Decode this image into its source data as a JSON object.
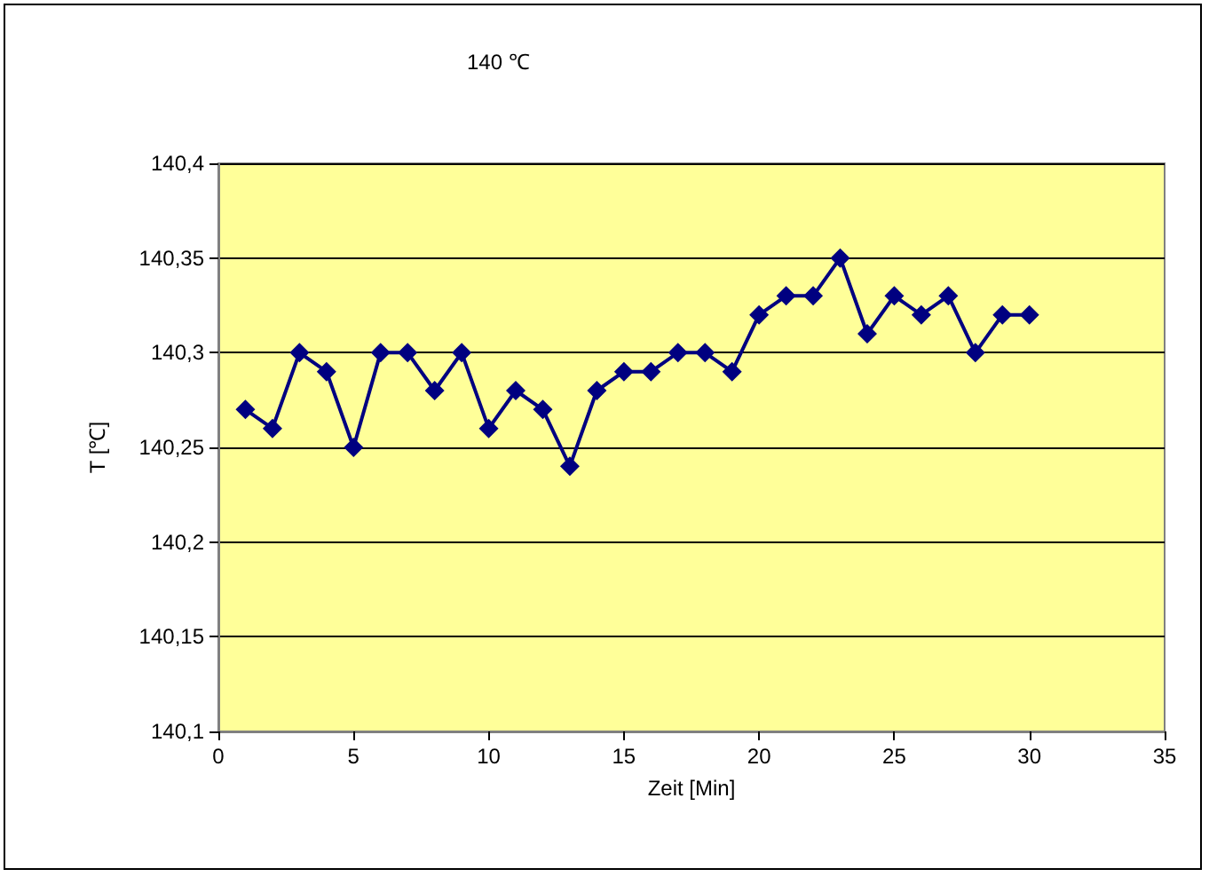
{
  "chart_data": {
    "type": "line",
    "title": "140 ℃",
    "xlabel": "Zeit [Min]",
    "ylabel": "T [℃]",
    "x": [
      1,
      2,
      3,
      4,
      5,
      6,
      7,
      8,
      9,
      10,
      11,
      12,
      13,
      14,
      15,
      16,
      17,
      18,
      19,
      20,
      21,
      22,
      23,
      24,
      25,
      26,
      27,
      28,
      29,
      30
    ],
    "series": [
      {
        "color": "#000080",
        "values": [
          140.27,
          140.26,
          140.3,
          140.29,
          140.25,
          140.3,
          140.3,
          140.28,
          140.3,
          140.26,
          140.28,
          140.27,
          140.24,
          140.28,
          140.29,
          140.29,
          140.3,
          140.3,
          140.29,
          140.32,
          140.33,
          140.33,
          140.35,
          140.31,
          140.33,
          140.32,
          140.33,
          140.3,
          140.32,
          140.32
        ]
      }
    ],
    "xlim": [
      0,
      35
    ],
    "xticks": [
      0,
      5,
      10,
      15,
      20,
      25,
      30,
      35
    ],
    "ylim": [
      140.1,
      140.4
    ],
    "yticks": [
      {
        "value": 140.1,
        "label": "140,1"
      },
      {
        "value": 140.15,
        "label": "140,15"
      },
      {
        "value": 140.2,
        "label": "140,2"
      },
      {
        "value": 140.25,
        "label": "140,25"
      },
      {
        "value": 140.3,
        "label": "140,3"
      },
      {
        "value": 140.35,
        "label": "140,35"
      },
      {
        "value": 140.4,
        "label": "140,4"
      }
    ],
    "grid": "y",
    "marker": "diamond",
    "line_style": "solid"
  }
}
